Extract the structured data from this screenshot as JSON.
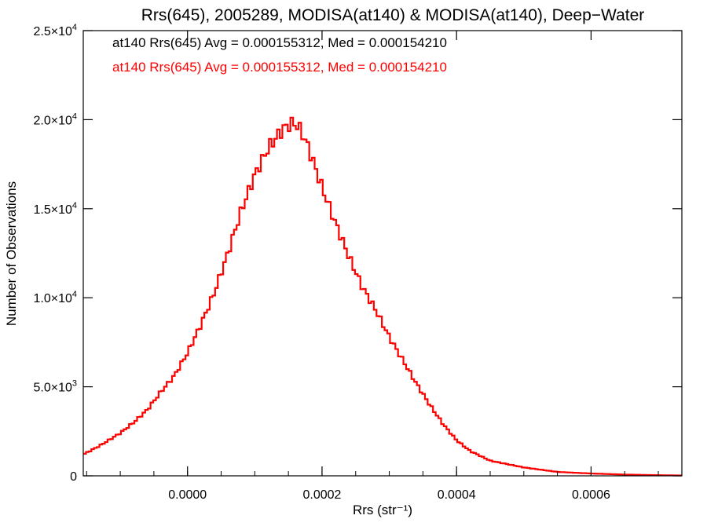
{
  "chart_data": {
    "type": "histogram",
    "title": "Rrs(645), 2005289, MODISA(at140) & MODISA(at140), Deep−Water",
    "xlabel": "Rrs (str⁻¹)",
    "ylabel": "Number of Observations",
    "xlim": [
      -0.000155,
      0.000735
    ],
    "ylim": [
      0,
      25000
    ],
    "x_ticks": [
      0.0,
      0.0002,
      0.0004,
      0.0006
    ],
    "x_tick_labels": [
      "0.0000",
      "0.0002",
      "0.0004",
      "0.0006"
    ],
    "y_ticks": [
      0,
      5000,
      10000,
      15000,
      20000,
      25000
    ],
    "y_tick_labels": [
      {
        "base": "0",
        "exp": ""
      },
      {
        "base": "5.0×10",
        "exp": "3"
      },
      {
        "base": "1.0×10",
        "exp": "4"
      },
      {
        "base": "1.5×10",
        "exp": "4"
      },
      {
        "base": "2.0×10",
        "exp": "4"
      },
      {
        "base": "2.5×10",
        "exp": "4"
      }
    ],
    "annotations": [
      {
        "text": "at140 Rrs(645) Avg = 0.000155312, Med = 0.000154210",
        "color": "#000000"
      },
      {
        "text": "at140 Rrs(645) Avg = 0.000155312, Med = 0.000154210",
        "color": "#ff0000"
      }
    ],
    "grid": false,
    "bin_width": 4e-06,
    "series": [
      {
        "color": "#000000",
        "x": [
          -0.000155,
          -0.00013,
          -0.0001,
          -8e-05,
          -6e-05,
          -4e-05,
          -2e-05,
          0.0,
          2e-05,
          4e-05,
          6e-05,
          8e-05,
          0.0001,
          0.00012,
          0.00014,
          0.00015,
          0.00016,
          0.00017,
          0.00018,
          0.0002,
          0.00022,
          0.00024,
          0.00026,
          0.00028,
          0.0003,
          0.00032,
          0.00034,
          0.00036,
          0.00038,
          0.0004,
          0.00042,
          0.00045,
          0.0005,
          0.00055,
          0.0006,
          0.00065,
          0.0007,
          0.000735
        ],
        "y": [
          1200,
          1700,
          2400,
          3000,
          3700,
          4700,
          5600,
          6900,
          8500,
          10300,
          12500,
          14900,
          16900,
          18400,
          19400,
          19700,
          19800,
          19300,
          18400,
          16200,
          14200,
          12300,
          10600,
          9300,
          7800,
          6500,
          5200,
          4000,
          2900,
          2000,
          1400,
          850,
          470,
          220,
          130,
          70,
          35,
          20
        ]
      },
      {
        "color": "#ff0000",
        "x": [
          -0.000155,
          -0.00013,
          -0.0001,
          -8e-05,
          -6e-05,
          -4e-05,
          -2e-05,
          0.0,
          2e-05,
          4e-05,
          6e-05,
          8e-05,
          0.0001,
          0.00012,
          0.00014,
          0.00015,
          0.00016,
          0.00017,
          0.00018,
          0.0002,
          0.00022,
          0.00024,
          0.00026,
          0.00028,
          0.0003,
          0.00032,
          0.00034,
          0.00036,
          0.00038,
          0.0004,
          0.00042,
          0.00045,
          0.0005,
          0.00055,
          0.0006,
          0.00065,
          0.0007,
          0.000735
        ],
        "y": [
          1200,
          1700,
          2400,
          3000,
          3700,
          4700,
          5600,
          6900,
          8500,
          10300,
          12500,
          14900,
          16900,
          18400,
          19400,
          19700,
          19800,
          19300,
          18400,
          16200,
          14200,
          12300,
          10600,
          9300,
          7800,
          6500,
          5200,
          4000,
          2900,
          2000,
          1400,
          850,
          470,
          220,
          130,
          70,
          35,
          20
        ]
      }
    ]
  }
}
